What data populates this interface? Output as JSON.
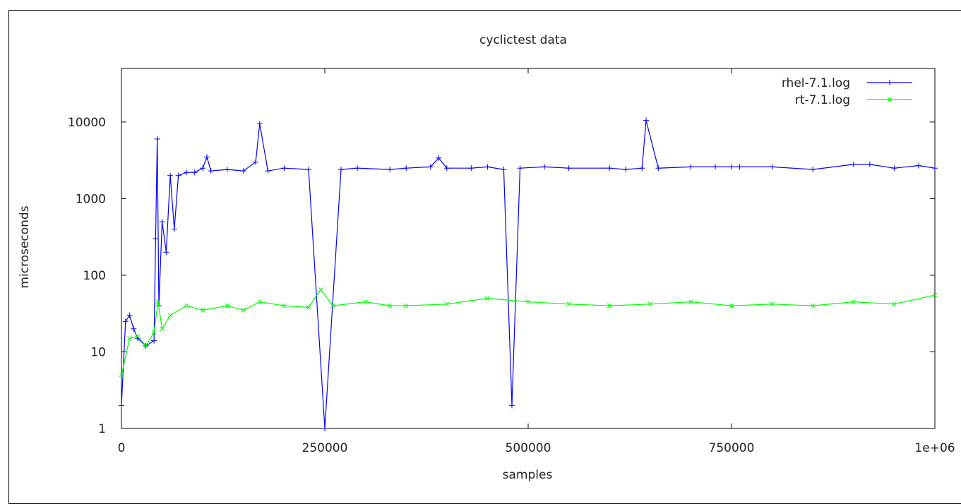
{
  "chart_data": {
    "type": "line",
    "title": "cyclictest data",
    "xlabel": "samples",
    "ylabel": "microseconds",
    "xlim": [
      0,
      1000000
    ],
    "ylim": [
      1,
      50000
    ],
    "yscale": "log",
    "xticks": [
      {
        "value": 0,
        "label": "0"
      },
      {
        "value": 250000,
        "label": "250000"
      },
      {
        "value": 500000,
        "label": "500000"
      },
      {
        "value": 750000,
        "label": "750000"
      },
      {
        "value": 1000000,
        "label": "1e+06"
      }
    ],
    "yticks": [
      {
        "value": 1,
        "label": "1"
      },
      {
        "value": 10,
        "label": "10"
      },
      {
        "value": 100,
        "label": "100"
      },
      {
        "value": 1000,
        "label": "1000"
      },
      {
        "value": 10000,
        "label": "10000"
      }
    ],
    "grid": false,
    "legend_position": "top-right",
    "series": [
      {
        "name": "rhel-7.1.log",
        "color": "#0000ff",
        "marker": "plus",
        "x": [
          0,
          5000,
          10000,
          15000,
          20000,
          30000,
          40000,
          42000,
          44000,
          46000,
          50000,
          55000,
          60000,
          65000,
          70000,
          80000,
          90000,
          100000,
          105000,
          110000,
          130000,
          150000,
          165000,
          170000,
          180000,
          200000,
          230000,
          250000,
          270000,
          290000,
          330000,
          350000,
          380000,
          390000,
          400000,
          430000,
          450000,
          470000,
          480000,
          490000,
          520000,
          550000,
          600000,
          620000,
          640000,
          645000,
          660000,
          700000,
          730000,
          750000,
          760000,
          800000,
          850000,
          900000,
          920000,
          950000,
          980000,
          1000000
        ],
        "y": [
          2,
          25,
          30,
          20,
          15,
          12,
          14,
          300,
          6000,
          40,
          500,
          200,
          2000,
          400,
          2000,
          2200,
          2200,
          2500,
          3500,
          2300,
          2400,
          2300,
          3000,
          9500,
          2300,
          2500,
          2400,
          1,
          2400,
          2500,
          2400,
          2500,
          2600,
          3400,
          2500,
          2500,
          2600,
          2400,
          2,
          2500,
          2600,
          2500,
          2500,
          2400,
          2500,
          10500,
          2500,
          2600,
          2600,
          2600,
          2600,
          2600,
          2400,
          2800,
          2800,
          2500,
          2700,
          2500
        ]
      },
      {
        "name": "rt-7.1.log",
        "color": "#00ff00",
        "marker": "cross",
        "x": [
          0,
          10000,
          20000,
          30000,
          40000,
          45000,
          50000,
          60000,
          80000,
          100000,
          130000,
          150000,
          170000,
          200000,
          230000,
          245000,
          260000,
          300000,
          330000,
          350000,
          400000,
          450000,
          500000,
          550000,
          600000,
          650000,
          700000,
          750000,
          800000,
          850000,
          900000,
          950000,
          1000000
        ],
        "y": [
          5,
          15,
          16,
          12,
          18,
          45,
          20,
          30,
          40,
          35,
          40,
          35,
          45,
          40,
          38,
          65,
          40,
          45,
          40,
          40,
          42,
          50,
          45,
          42,
          40,
          42,
          45,
          40,
          42,
          40,
          45,
          42,
          55
        ]
      }
    ]
  }
}
